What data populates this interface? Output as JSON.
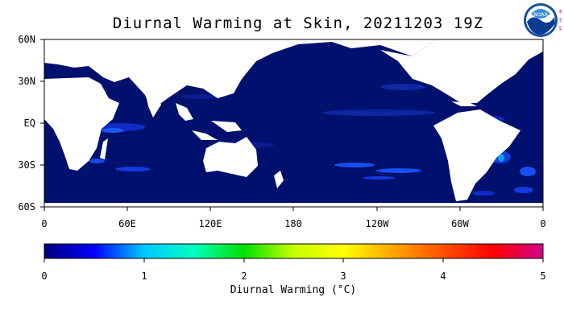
{
  "title": "Diurnal Warming at Skin, 20211203 19Z",
  "logo": {
    "name": "NOAA",
    "side_letters": [
      "P",
      "S",
      "L"
    ]
  },
  "map": {
    "longitude_ticks": [
      "0",
      "60E",
      "120E",
      "180",
      "120W",
      "60W",
      "0"
    ],
    "latitude_ticks": [
      "60N",
      "30N",
      "EQ",
      "30S",
      "60S"
    ],
    "ocean_color": "#00106e",
    "land_color": "#ffffff"
  },
  "colorbar": {
    "ticks": [
      "0",
      "1",
      "2",
      "3",
      "4",
      "5"
    ],
    "label": "Diurnal Warming (°C)",
    "range": [
      0,
      5
    ],
    "colors": [
      "#000080",
      "#0000ff",
      "#00c8ff",
      "#00ffc0",
      "#00e000",
      "#c8ff00",
      "#ffff00",
      "#ffa500",
      "#ff5000",
      "#ff0000",
      "#d2008c"
    ]
  }
}
